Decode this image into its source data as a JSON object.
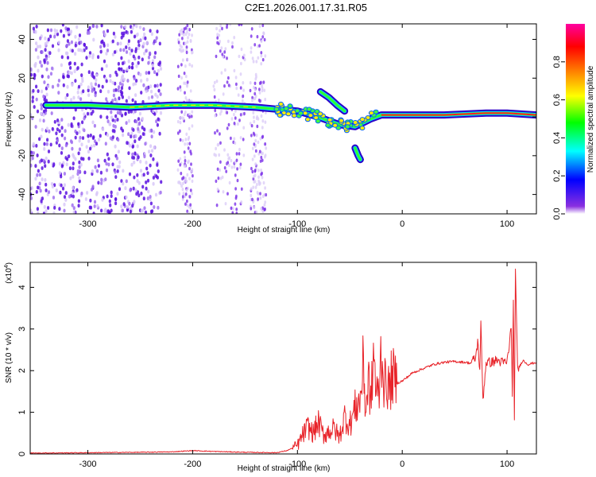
{
  "title": "C2E1.2026.001.17.31.R05",
  "chart_data": [
    {
      "type": "heatmap",
      "xlabel": "Height of straight line (km)",
      "ylabel": "Frequency (Hz)",
      "xlim": [
        -355,
        128
      ],
      "ylim": [
        -50,
        48
      ],
      "xticks": [
        -300,
        -200,
        -100,
        0,
        100
      ],
      "yticks": [
        -40,
        -20,
        0,
        20,
        40
      ],
      "colorbar": {
        "label": "Normalized spectral amplitude",
        "range": [
          0,
          1
        ],
        "ticks": [
          "0.0",
          "0.2",
          "0.4",
          "0.6",
          "0.8"
        ],
        "tick_values": [
          0.0,
          0.2,
          0.4,
          0.6,
          0.8
        ],
        "colors": [
          "#ffffff",
          "#7a00d8",
          "#0000ff",
          "#00ffff",
          "#00ff00",
          "#ffff00",
          "#ff8000",
          "#ff0000",
          "#ff00a0"
        ]
      },
      "main_trace": {
        "x": [
          -340,
          -300,
          -260,
          -220,
          -180,
          -140,
          -120,
          -100,
          -80,
          -60,
          -45,
          -30,
          -20,
          0,
          40,
          80,
          100,
          128
        ],
        "y": [
          6,
          6,
          5,
          6,
          6,
          5,
          4,
          3,
          0,
          -4,
          -5,
          -1,
          1,
          1,
          1,
          2,
          2,
          1
        ]
      },
      "branch_upper": {
        "x": [
          -78,
          -70,
          -62,
          -55
        ],
        "y": [
          13,
          10,
          6,
          3
        ]
      },
      "branch_lower": {
        "x": [
          -45,
          -42,
          -40
        ],
        "y": [
          -16,
          -20,
          -22
        ]
      }
    },
    {
      "type": "line",
      "xlabel": "Height of straight line (km)",
      "ylabel": "SNR (10 * v/v)",
      "scale_note": "(x10",
      "scale_exp": "4",
      "scale_close": ")",
      "xlim": [
        -355,
        128
      ],
      "ylim": [
        0,
        4.6
      ],
      "xticks": [
        -300,
        -200,
        -100,
        0,
        100
      ],
      "yticks": [
        0,
        1,
        2,
        3,
        4
      ],
      "line_color": "#e8242a",
      "x": [
        -355,
        -300,
        -250,
        -220,
        -200,
        -180,
        -150,
        -120,
        -110,
        -100,
        -95,
        -90,
        -85,
        -80,
        -75,
        -70,
        -65,
        -60,
        -55,
        -50,
        -45,
        -40,
        -37,
        -35,
        -32,
        -30,
        -27,
        -25,
        -22,
        -20,
        -17,
        -15,
        -12,
        -10,
        -5,
        0,
        10,
        20,
        30,
        40,
        50,
        60,
        65,
        70,
        72,
        74,
        75,
        77,
        80,
        85,
        90,
        95,
        100,
        102,
        104,
        105,
        106,
        107,
        108,
        110,
        115,
        120,
        128
      ],
      "y": [
        0.02,
        0.03,
        0.04,
        0.05,
        0.08,
        0.06,
        0.04,
        0.03,
        0.08,
        0.2,
        0.45,
        0.65,
        0.5,
        0.75,
        0.45,
        0.55,
        0.6,
        0.4,
        0.9,
        0.7,
        1.1,
        1.3,
        2.2,
        1.0,
        1.8,
        1.2,
        2.5,
        1.4,
        1.5,
        2.6,
        1.6,
        1.8,
        1.5,
        1.9,
        1.7,
        1.75,
        1.95,
        2.05,
        2.15,
        2.2,
        2.22,
        2.2,
        2.18,
        2.3,
        2.7,
        2.0,
        3.1,
        1.3,
        2.2,
        2.2,
        2.25,
        2.2,
        2.2,
        2.6,
        3.05,
        1.5,
        3.6,
        0.7,
        4.55,
        2.0,
        2.25,
        2.15,
        2.2
      ]
    }
  ]
}
